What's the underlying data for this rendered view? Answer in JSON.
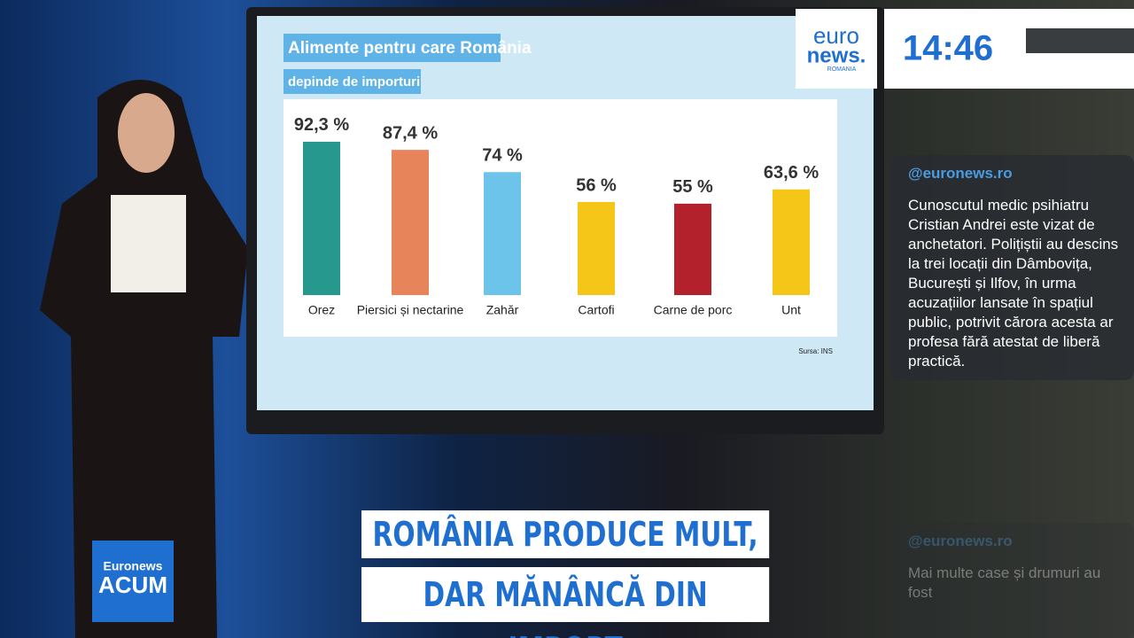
{
  "chart_data": {
    "type": "bar",
    "title": "Alimente pentru care România",
    "subtitle": "depinde de importuri",
    "categories": [
      "Orez",
      "Piersici și nectarine",
      "Zahăr",
      "Cartofi",
      "Carne de porc",
      "Unt"
    ],
    "values": [
      92.3,
      87.4,
      74,
      56,
      55,
      63.6
    ],
    "value_labels": [
      "92,3 %",
      "87,4 %",
      "74 %",
      "56 %",
      "55 %",
      "63,6 %"
    ],
    "colors": [
      "#27988d",
      "#e8845a",
      "#6cc4ea",
      "#f5c518",
      "#b3222c",
      "#f5c518"
    ],
    "source": "Sursa: INS"
  },
  "logo": {
    "line1": "euro",
    "line2": "news.",
    "line3": "ROMANIA"
  },
  "clock": "14:46",
  "social_cards": [
    {
      "handle": "@euronews.ro",
      "text": "Cunoscutul medic psihiatru Cristian Andrei este vizat de anchetatori. Polițiștii au descins la trei locații din Dâmbovița, București și Ilfov, în urma acuzațiilor lansate în spațiul public, potrivit cărora acesta ar profesa fără atestat de liberă practică."
    },
    {
      "handle": "@euronews.ro",
      "text": "Mai multe case și drumuri au fost"
    }
  ],
  "headline": {
    "line1": "ROMÂNIA PRODUCE MULT,",
    "line2": "DAR MĂNÂNCĂ DIN IMPORT"
  },
  "badge": {
    "line1": "Euronews",
    "line2": "ACUM"
  }
}
